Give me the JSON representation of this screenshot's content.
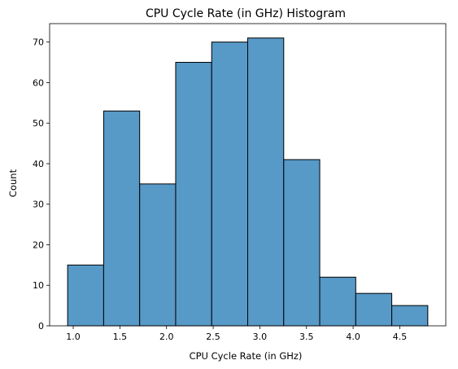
{
  "chart_data": {
    "type": "bar",
    "title": "CPU Cycle Rate (in GHz) Histogram",
    "xlabel": "CPU Cycle Rate (in GHz)",
    "ylabel": "Count",
    "bin_edges": [
      0.94,
      1.326,
      1.712,
      2.098,
      2.484,
      2.87,
      3.256,
      3.642,
      4.028,
      4.414,
      4.8
    ],
    "values": [
      15,
      53,
      35,
      65,
      70,
      71,
      41,
      12,
      8,
      5
    ],
    "xlim": [
      0.747,
      4.993
    ],
    "ylim": [
      0,
      74.55
    ],
    "xticks": [
      1.0,
      1.5,
      2.0,
      2.5,
      3.0,
      3.5,
      4.0,
      4.5
    ],
    "xtick_labels": [
      "1.0",
      "1.5",
      "2.0",
      "2.5",
      "3.0",
      "3.5",
      "4.0",
      "4.5"
    ],
    "yticks": [
      0,
      10,
      20,
      30,
      40,
      50,
      60,
      70
    ],
    "ytick_labels": [
      "0",
      "10",
      "20",
      "30",
      "40",
      "50",
      "60",
      "70"
    ],
    "grid": false,
    "bar_color": "#5799c7",
    "edge_color": "#000000"
  }
}
